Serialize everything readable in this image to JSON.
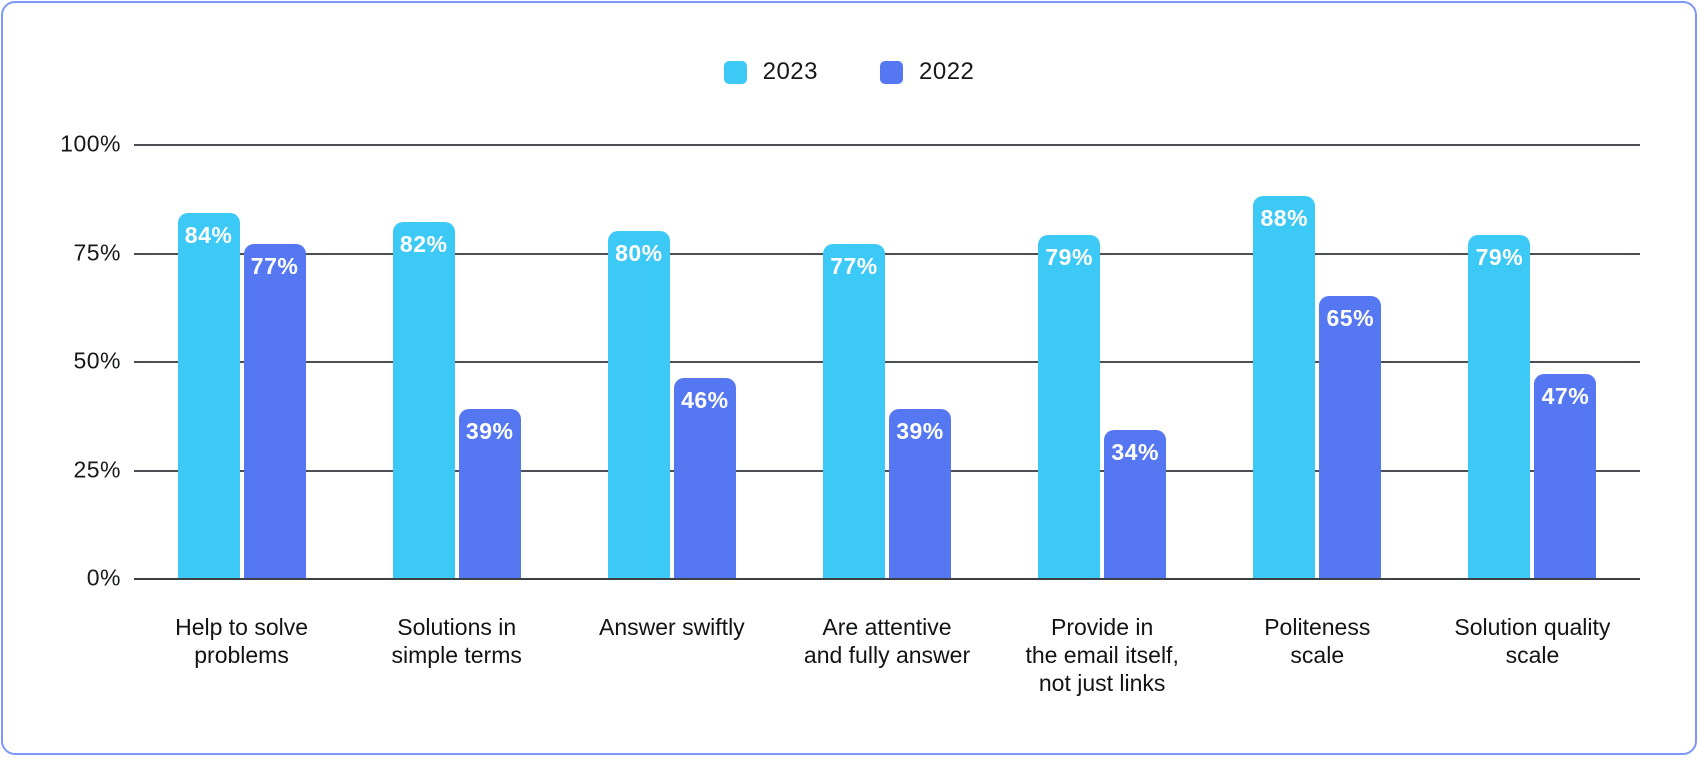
{
  "frame": {
    "border_color": "#7d98f7",
    "background_color": "#ffffff"
  },
  "colors": {
    "series_2023": "#3cc9f5",
    "series_2022": "#5677f2",
    "gridline": "#4b4f54",
    "text": "#17181a",
    "bar_value_text": "#ffffff"
  },
  "legend": {
    "items": [
      {
        "label": "2023",
        "color": "#3cc9f5"
      },
      {
        "label": "2022",
        "color": "#5677f2"
      }
    ]
  },
  "chart_data": {
    "type": "bar",
    "title": "",
    "xlabel": "",
    "ylabel": "",
    "ylim": [
      0,
      100
    ],
    "grid": true,
    "legend_position": "top-center",
    "value_suffix": "%",
    "categories": [
      "Help to solve problems",
      "Solutions in simple terms",
      "Answer swiftly",
      "Are attentive and fully answer",
      "Provide in the email itself, not just links",
      "Politeness scale",
      "Solution quality scale"
    ],
    "category_lines": [
      [
        "Help to solve",
        "problems"
      ],
      [
        "Solutions in",
        "simple terms"
      ],
      [
        "Answer swiftly"
      ],
      [
        "Are attentive",
        "and fully answer"
      ],
      [
        "Provide in",
        "the email itself,",
        "not just links"
      ],
      [
        "Politeness",
        "scale"
      ],
      [
        "Solution quality",
        "scale"
      ]
    ],
    "y_ticks": [
      {
        "label": "100%",
        "value": 100
      },
      {
        "label": "75%",
        "value": 75
      },
      {
        "label": "50%",
        "value": 50
      },
      {
        "label": "25%",
        "value": 25
      },
      {
        "label": "0%",
        "value": 0
      }
    ],
    "series": [
      {
        "name": "2023",
        "color": "#3cc9f5",
        "values": [
          84,
          82,
          80,
          77,
          79,
          88,
          79
        ]
      },
      {
        "name": "2022",
        "color": "#5677f2",
        "values": [
          77,
          39,
          46,
          39,
          34,
          65,
          47
        ]
      }
    ]
  }
}
